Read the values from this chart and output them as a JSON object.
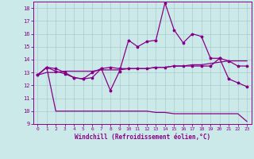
{
  "xlabel": "Windchill (Refroidissement éolien,°C)",
  "x": [
    0,
    1,
    2,
    3,
    4,
    5,
    6,
    7,
    8,
    9,
    10,
    11,
    12,
    13,
    14,
    15,
    16,
    17,
    18,
    19,
    20,
    21,
    22,
    23
  ],
  "line_spiky": [
    12.8,
    13.4,
    13.1,
    12.9,
    12.6,
    12.5,
    12.6,
    13.3,
    11.6,
    13.1,
    15.5,
    15.0,
    15.4,
    15.5,
    18.4,
    16.3,
    15.3,
    16.0,
    15.8,
    14.1,
    14.1,
    12.5,
    12.2,
    11.9
  ],
  "line_mid": [
    12.8,
    13.4,
    13.3,
    13.0,
    12.6,
    12.5,
    13.0,
    13.3,
    13.4,
    13.3,
    13.3,
    13.3,
    13.3,
    13.4,
    13.4,
    13.5,
    13.5,
    13.5,
    13.5,
    13.5,
    14.1,
    13.9,
    13.5,
    13.5
  ],
  "line_trend": [
    12.8,
    13.0,
    13.0,
    13.1,
    13.1,
    13.1,
    13.1,
    13.2,
    13.2,
    13.2,
    13.3,
    13.3,
    13.3,
    13.4,
    13.4,
    13.5,
    13.5,
    13.6,
    13.6,
    13.7,
    13.8,
    13.9,
    13.9,
    13.9
  ],
  "line_low": [
    12.8,
    13.4,
    10.0,
    10.0,
    10.0,
    10.0,
    10.0,
    10.0,
    10.0,
    10.0,
    10.0,
    10.0,
    10.0,
    9.9,
    9.9,
    9.8,
    9.8,
    9.8,
    9.8,
    9.8,
    9.8,
    9.8,
    9.8,
    9.2
  ],
  "ylim": [
    9,
    18.5
  ],
  "yticks": [
    9,
    10,
    11,
    12,
    13,
    14,
    15,
    16,
    17,
    18
  ],
  "xticks": [
    0,
    1,
    2,
    3,
    4,
    5,
    6,
    7,
    8,
    9,
    10,
    11,
    12,
    13,
    14,
    15,
    16,
    17,
    18,
    19,
    20,
    21,
    22,
    23
  ],
  "bg_color": "#cce9e9",
  "line_color": "#880088",
  "grid_color": "#aacccc"
}
